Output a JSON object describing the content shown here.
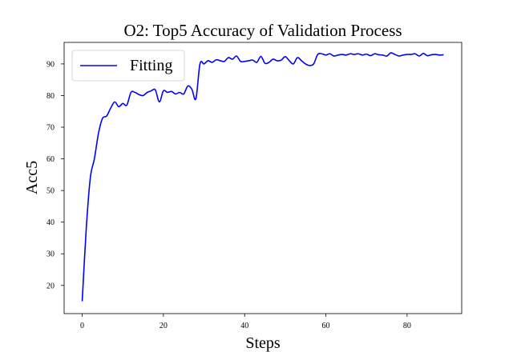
{
  "chart_data": {
    "type": "line",
    "title": "O2: Top5 Accuracy of Validation Process",
    "xlabel": "Steps",
    "ylabel": "Acc5",
    "xlim": [
      -4.45,
      93.45
    ],
    "ylim": [
      11.1,
      96.8
    ],
    "xticks": [
      0,
      20,
      40,
      60,
      80
    ],
    "yticks": [
      20,
      30,
      40,
      50,
      60,
      70,
      80,
      90
    ],
    "grid": false,
    "legend_position": "upper-left",
    "series": [
      {
        "name": "Fitting",
        "color": "#0000ff",
        "x": [
          0,
          1,
          2,
          3,
          4,
          5,
          6,
          7,
          8,
          9,
          10,
          11,
          12,
          13,
          14,
          15,
          16,
          17,
          18,
          19,
          20,
          21,
          22,
          23,
          24,
          25,
          26,
          27,
          28,
          29,
          30,
          31,
          32,
          33,
          34,
          35,
          36,
          37,
          38,
          39,
          40,
          41,
          42,
          43,
          44,
          45,
          46,
          47,
          48,
          49,
          50,
          51,
          52,
          53,
          54,
          55,
          56,
          57,
          58,
          59,
          60,
          61,
          62,
          63,
          64,
          65,
          66,
          67,
          68,
          69,
          70,
          71,
          72,
          73,
          74,
          75,
          76,
          77,
          78,
          79,
          80,
          81,
          82,
          83,
          84,
          85,
          86,
          87,
          88,
          89
        ],
        "y": [
          15.0,
          38.0,
          54.0,
          60.0,
          68.0,
          72.8,
          73.5,
          76.0,
          78.0,
          76.5,
          77.5,
          77.0,
          81.0,
          81.0,
          80.3,
          80.0,
          81.0,
          81.5,
          81.8,
          78.0,
          81.5,
          81.0,
          81.3,
          80.5,
          81.0,
          80.5,
          83.0,
          82.0,
          79.0,
          90.0,
          90.0,
          91.0,
          90.5,
          91.3,
          91.0,
          90.8,
          92.0,
          91.5,
          92.5,
          90.8,
          90.8,
          91.0,
          91.2,
          90.5,
          92.4,
          90.2,
          90.5,
          91.5,
          91.0,
          91.2,
          92.3,
          91.0,
          90.0,
          92.0,
          91.0,
          90.0,
          89.5,
          90.0,
          93.0,
          93.2,
          92.8,
          93.2,
          92.5,
          92.8,
          93.0,
          92.8,
          93.2,
          93.0,
          93.2,
          92.8,
          93.1,
          92.6,
          93.2,
          92.9,
          92.8,
          92.5,
          93.5,
          93.0,
          92.5,
          92.8,
          93.0,
          93.0,
          93.2,
          92.5,
          93.3,
          92.6,
          92.9,
          93.0,
          92.8,
          92.9
        ]
      }
    ]
  }
}
